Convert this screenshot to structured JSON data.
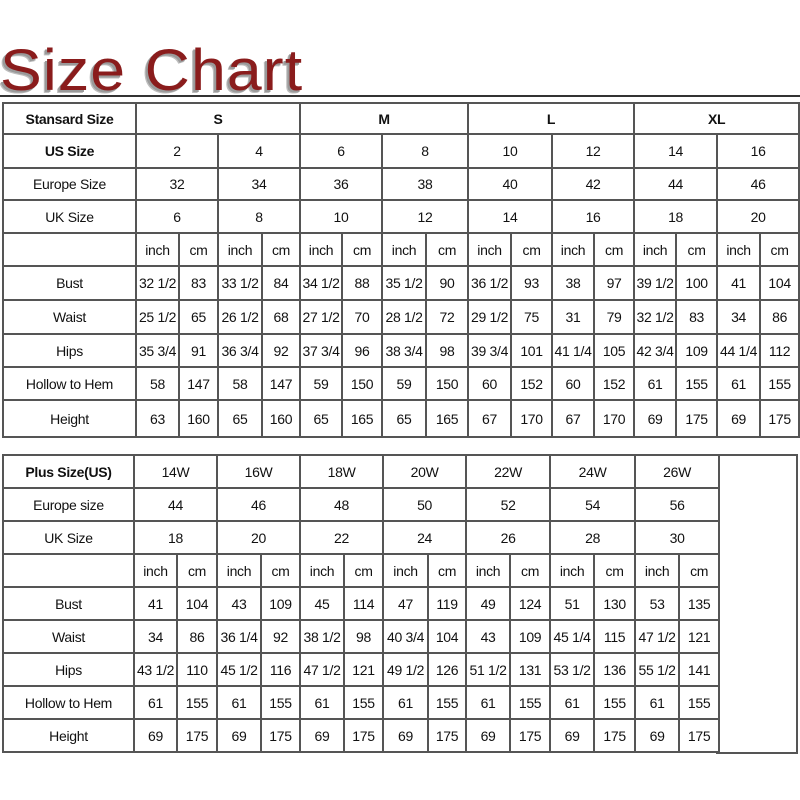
{
  "title": "Size Chart",
  "standard": {
    "header_label": "Stansard Size",
    "groups": [
      "S",
      "M",
      "L",
      "XL"
    ],
    "us_label": "US Size",
    "us": [
      "2",
      "4",
      "6",
      "8",
      "10",
      "12",
      "14",
      "16"
    ],
    "eu_label": "Europe Size",
    "eu": [
      "32",
      "34",
      "36",
      "38",
      "40",
      "42",
      "44",
      "46"
    ],
    "uk_label": "UK Size",
    "uk": [
      "6",
      "8",
      "10",
      "12",
      "14",
      "16",
      "18",
      "20"
    ],
    "units": [
      "inch",
      "cm"
    ],
    "rows": [
      {
        "label": "Bust",
        "values": [
          "32 1/2",
          "83",
          "33 1/2",
          "84",
          "34 1/2",
          "88",
          "35 1/2",
          "90",
          "36 1/2",
          "93",
          "38",
          "97",
          "39 1/2",
          "100",
          "41",
          "104"
        ]
      },
      {
        "label": "Waist",
        "values": [
          "25 1/2",
          "65",
          "26 1/2",
          "68",
          "27 1/2",
          "70",
          "28 1/2",
          "72",
          "29 1/2",
          "75",
          "31",
          "79",
          "32 1/2",
          "83",
          "34",
          "86"
        ]
      },
      {
        "label": "Hips",
        "values": [
          "35 3/4",
          "91",
          "36 3/4",
          "92",
          "37 3/4",
          "96",
          "38 3/4",
          "98",
          "39 3/4",
          "101",
          "41 1/4",
          "105",
          "42 3/4",
          "109",
          "44 1/4",
          "112"
        ]
      },
      {
        "label": "Hollow to Hem",
        "values": [
          "58",
          "147",
          "58",
          "147",
          "59",
          "150",
          "59",
          "150",
          "60",
          "152",
          "60",
          "152",
          "61",
          "155",
          "61",
          "155"
        ]
      },
      {
        "label": "Height",
        "values": [
          "63",
          "160",
          "65",
          "160",
          "65",
          "165",
          "65",
          "165",
          "67",
          "170",
          "67",
          "170",
          "69",
          "175",
          "69",
          "175"
        ]
      }
    ]
  },
  "plus": {
    "header_label": "Plus Size(US)",
    "sizes": [
      "14W",
      "16W",
      "18W",
      "20W",
      "22W",
      "24W",
      "26W"
    ],
    "eu_label": "Europe size",
    "eu": [
      "44",
      "46",
      "48",
      "50",
      "52",
      "54",
      "56"
    ],
    "uk_label": "UK Size",
    "uk": [
      "18",
      "20",
      "22",
      "24",
      "26",
      "28",
      "30"
    ],
    "units": [
      "inch",
      "cm"
    ],
    "rows": [
      {
        "label": "Bust",
        "values": [
          "41",
          "104",
          "43",
          "109",
          "45",
          "114",
          "47",
          "119",
          "49",
          "124",
          "51",
          "130",
          "53",
          "135"
        ]
      },
      {
        "label": "Waist",
        "values": [
          "34",
          "86",
          "36 1/4",
          "92",
          "38 1/2",
          "98",
          "40 3/4",
          "104",
          "43",
          "109",
          "45 1/4",
          "115",
          "47 1/2",
          "121"
        ]
      },
      {
        "label": "Hips",
        "values": [
          "43 1/2",
          "110",
          "45 1/2",
          "116",
          "47 1/2",
          "121",
          "49 1/2",
          "126",
          "51 1/2",
          "131",
          "53 1/2",
          "136",
          "55 1/2",
          "141"
        ]
      },
      {
        "label": "Hollow to Hem",
        "values": [
          "61",
          "155",
          "61",
          "155",
          "61",
          "155",
          "61",
          "155",
          "61",
          "155",
          "61",
          "155",
          "61",
          "155"
        ]
      },
      {
        "label": "Height",
        "values": [
          "69",
          "175",
          "69",
          "175",
          "69",
          "175",
          "69",
          "175",
          "69",
          "175",
          "69",
          "175",
          "69",
          "175"
        ]
      }
    ]
  }
}
